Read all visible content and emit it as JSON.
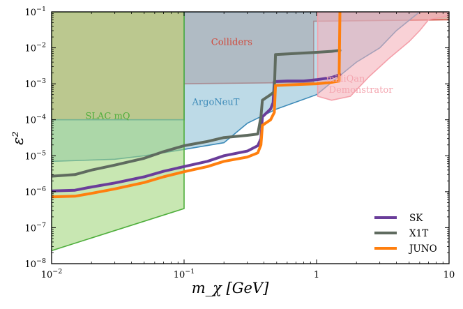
{
  "chart_data": {
    "type": "line",
    "title": "",
    "xlabel": "m_χ [GeV]",
    "ylabel": "ε²",
    "x_scale": "log",
    "y_scale": "log",
    "xlim": [
      0.01,
      10
    ],
    "ylim": [
      1e-08,
      0.1
    ],
    "x_ticks": [
      {
        "value": 0.01,
        "base": "10",
        "exp": "−2"
      },
      {
        "value": 0.1,
        "base": "10",
        "exp": "−1"
      },
      {
        "value": 1,
        "base": "1",
        "exp": ""
      },
      {
        "value": 10,
        "base": "10",
        "exp": ""
      }
    ],
    "y_ticks": [
      {
        "value": 1e-08,
        "base": "10",
        "exp": "−8"
      },
      {
        "value": 1e-07,
        "base": "10",
        "exp": "−7"
      },
      {
        "value": 1e-06,
        "base": "10",
        "exp": "−6"
      },
      {
        "value": 1e-05,
        "base": "10",
        "exp": "−5"
      },
      {
        "value": 0.0001,
        "base": "10",
        "exp": "−4"
      },
      {
        "value": 0.001,
        "base": "10",
        "exp": "−3"
      },
      {
        "value": 0.01,
        "base": "10",
        "exp": "−2"
      },
      {
        "value": 0.1,
        "base": "10",
        "exp": "−1"
      }
    ],
    "excluded_regions": [
      {
        "name": "Colliders",
        "fill": "#c8826e",
        "stroke": "#d04a3c",
        "label_color": "#d04a3c",
        "label_at": [
          0.16,
          0.012
        ],
        "points": [
          [
            0.01,
            0.1
          ],
          [
            0.01,
            0.0001
          ],
          [
            0.1,
            0.0001
          ],
          [
            0.1,
            0.001
          ],
          [
            0.95,
            0.0011
          ],
          [
            0.95,
            0.055
          ],
          [
            10,
            0.06
          ],
          [
            10,
            0.1
          ]
        ]
      },
      {
        "name": "ArgoNeuT",
        "fill": "#8ec0d6",
        "stroke": "#3c8ab8",
        "label_color": "#3c8ab8",
        "label_at": [
          0.115,
          0.00026
        ],
        "points": [
          [
            0.01,
            7e-06
          ],
          [
            0.03,
            8e-06
          ],
          [
            0.05,
            1e-05
          ],
          [
            0.1,
            1.5e-05
          ],
          [
            0.2,
            2.3e-05
          ],
          [
            0.3,
            8e-05
          ],
          [
            0.5,
            0.0002
          ],
          [
            1,
            0.0005
          ],
          [
            2,
            0.004
          ],
          [
            3,
            0.01
          ],
          [
            4,
            0.03
          ],
          [
            6,
            0.1
          ],
          [
            0.1,
            0.1
          ],
          [
            0.1,
            0.0001
          ],
          [
            0.01,
            0.0001
          ]
        ]
      },
      {
        "name": "milliQan Demonstrator",
        "fill": "#f4b0b8",
        "stroke": "#f4a0aa",
        "label_color": "#f4a6b0",
        "label_lines": [
          "milliQan",
          "Demonstrator"
        ],
        "label_at": [
          1.18,
          0.00115
        ],
        "points": [
          [
            1.02,
            0.00045
          ],
          [
            1.3,
            0.00035
          ],
          [
            1.8,
            0.00045
          ],
          [
            2.5,
            0.0016
          ],
          [
            3.5,
            0.005
          ],
          [
            5,
            0.015
          ],
          [
            6,
            0.03
          ],
          [
            7,
            0.06
          ],
          [
            10,
            0.08
          ],
          [
            10,
            0.1
          ],
          [
            1.02,
            0.1
          ]
        ]
      },
      {
        "name": "SLAC mQ",
        "fill": "#a0d57a",
        "stroke": "#4fae3c",
        "label_color": "#4fae3c",
        "label_at": [
          0.018,
          0.000105
        ],
        "points": [
          [
            0.01,
            2.3e-08
          ],
          [
            0.1,
            3.4e-07
          ],
          [
            0.1,
            0.1
          ],
          [
            0.01,
            0.1
          ]
        ]
      }
    ],
    "series": [
      {
        "name": "SK",
        "color": "#6a3d9a",
        "points": [
          [
            0.01,
            1.05e-06
          ],
          [
            0.015,
            1.1e-06
          ],
          [
            0.02,
            1.35e-06
          ],
          [
            0.03,
            1.75e-06
          ],
          [
            0.05,
            2.6e-06
          ],
          [
            0.07,
            3.7e-06
          ],
          [
            0.1,
            5e-06
          ],
          [
            0.15,
            7e-06
          ],
          [
            0.2,
            1e-05
          ],
          [
            0.3,
            1.35e-05
          ],
          [
            0.36,
            1.9e-05
          ],
          [
            0.38,
            3e-05
          ],
          [
            0.39,
            0.00012
          ],
          [
            0.45,
            0.0002
          ],
          [
            0.47,
            0.0003
          ],
          [
            0.48,
            0.00115
          ],
          [
            0.6,
            0.0012
          ],
          [
            0.8,
            0.0012
          ],
          [
            1,
            0.0013
          ],
          [
            1.3,
            0.0015
          ],
          [
            1.5,
            0.0018
          ]
        ]
      },
      {
        "name": "X1T",
        "color": "#5f6b5f",
        "points": [
          [
            0.01,
            2.7e-06
          ],
          [
            0.015,
            3e-06
          ],
          [
            0.02,
            4e-06
          ],
          [
            0.03,
            5.5e-06
          ],
          [
            0.05,
            8.5e-06
          ],
          [
            0.07,
            1.3e-05
          ],
          [
            0.1,
            1.9e-05
          ],
          [
            0.15,
            2.5e-05
          ],
          [
            0.2,
            3.2e-05
          ],
          [
            0.3,
            3.7e-05
          ],
          [
            0.36,
            4e-05
          ],
          [
            0.38,
            0.00012
          ],
          [
            0.39,
            0.00035
          ],
          [
            0.45,
            0.0005
          ],
          [
            0.48,
            0.0006
          ],
          [
            0.49,
            0.0065
          ],
          [
            0.7,
            0.007
          ],
          [
            1,
            0.0075
          ],
          [
            1.3,
            0.008
          ],
          [
            1.5,
            0.0085
          ]
        ]
      },
      {
        "name": "JUNO",
        "color": "#ff7f0e",
        "points": [
          [
            0.01,
            7.2e-07
          ],
          [
            0.015,
            7.5e-07
          ],
          [
            0.02,
            9e-07
          ],
          [
            0.03,
            1.2e-06
          ],
          [
            0.05,
            1.8e-06
          ],
          [
            0.07,
            2.6e-06
          ],
          [
            0.1,
            3.6e-06
          ],
          [
            0.15,
            5e-06
          ],
          [
            0.2,
            7e-06
          ],
          [
            0.3,
            9.2e-06
          ],
          [
            0.36,
            1.2e-05
          ],
          [
            0.38,
            2e-05
          ],
          [
            0.39,
            7e-05
          ],
          [
            0.45,
            0.0001
          ],
          [
            0.48,
            0.00016
          ],
          [
            0.49,
            0.0009
          ],
          [
            0.7,
            0.00095
          ],
          [
            1,
            0.001
          ],
          [
            1.3,
            0.0011
          ],
          [
            1.48,
            0.0012
          ],
          [
            1.5,
            0.1
          ]
        ]
      }
    ],
    "legend_position": "bottom-right"
  }
}
